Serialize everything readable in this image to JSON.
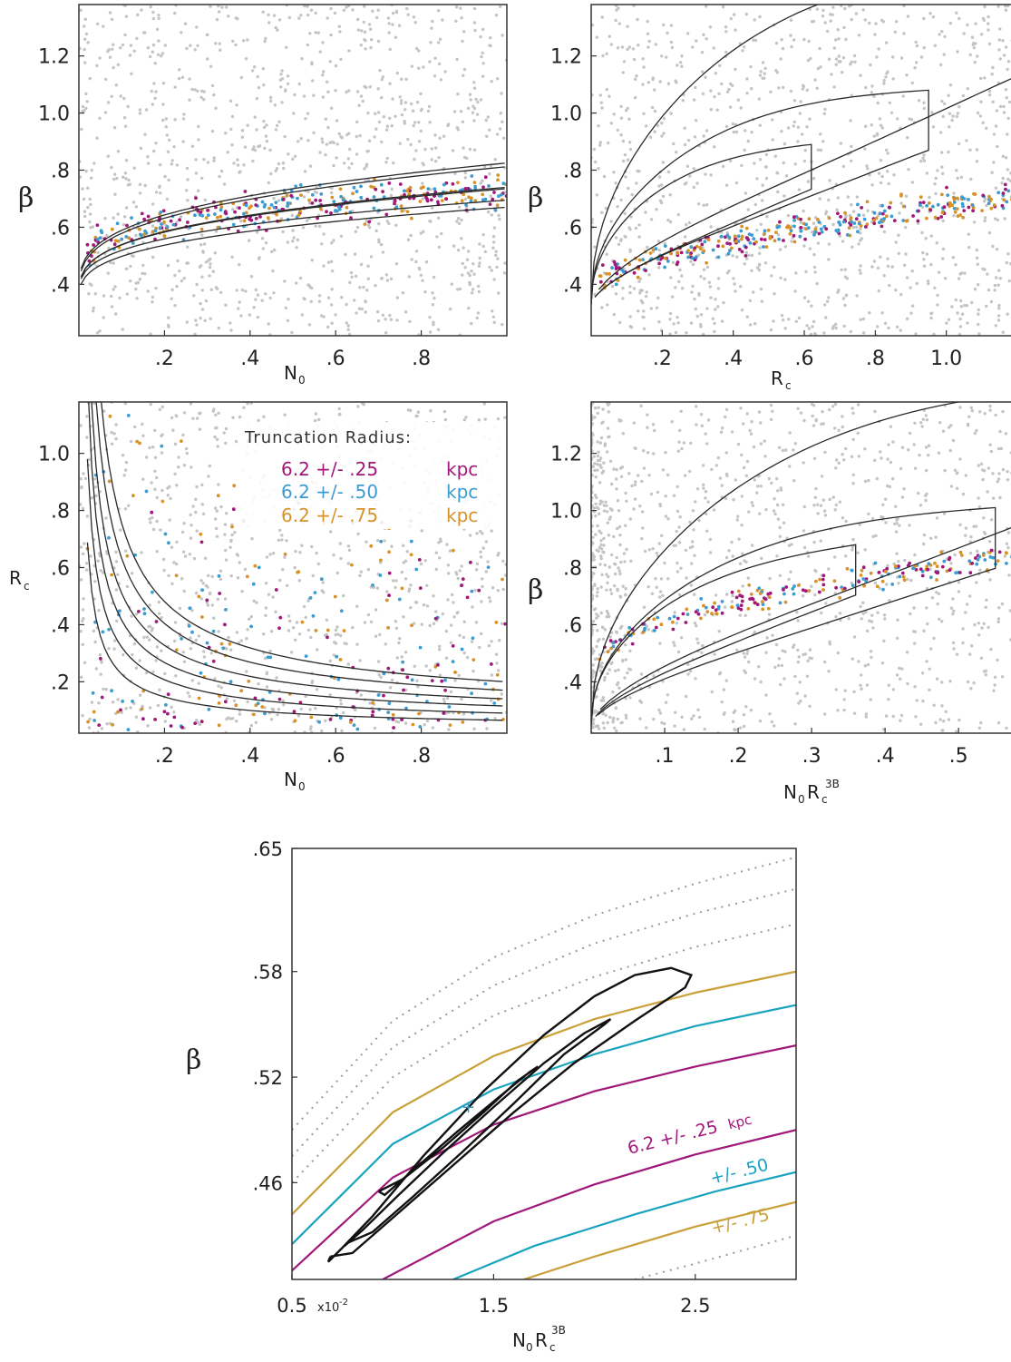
{
  "colors": {
    "magenta": "#a0187a",
    "blue": "#3c9bd0",
    "orange": "#d8922a",
    "gray": "#c4c4c4",
    "cyan": "#1aa3bf",
    "gold": "#c9a03a"
  },
  "chart_data": [
    {
      "type": "scatter",
      "panel": "top-left",
      "xlabel": "N",
      "xlabel_sub": "0",
      "ylabel": "β",
      "xlim": [
        0.0,
        1.0
      ],
      "ylim": [
        0.22,
        1.38
      ],
      "xticks": [
        0.2,
        0.4,
        0.6,
        0.8
      ],
      "xtick_labels": [
        ".2",
        ".4",
        ".6",
        ".8"
      ],
      "yticks": [
        0.4,
        0.6,
        0.8,
        1.0,
        1.2
      ],
      "ytick_labels": [
        ".4",
        ".6",
        ".8",
        "1.0",
        "1.2"
      ],
      "contours": "three nested contour bands rising from (0.02, 0.40) to about (1.0, 0.72–0.92)"
    },
    {
      "type": "scatter",
      "panel": "top-right",
      "xlabel": "R",
      "xlabel_sub": "c",
      "ylabel": "β",
      "xlim": [
        0.0,
        1.2
      ],
      "ylim": [
        0.22,
        1.38
      ],
      "xticks": [
        0.2,
        0.4,
        0.6,
        0.8,
        1.0
      ],
      "xtick_labels": [
        ".2",
        ".4",
        ".6",
        ".8",
        "1.0"
      ],
      "yticks": [
        0.4,
        0.6,
        0.8,
        1.0,
        1.2
      ],
      "ytick_labels": [
        ".4",
        ".6",
        ".8",
        "1.0",
        "1.2"
      ],
      "contours": "three nested elongated contours with tips near β = 0.88, 1.08 and above 1.3"
    },
    {
      "type": "scatter",
      "panel": "middle-left",
      "xlabel": "N",
      "xlabel_sub": "0",
      "ylabel": "R",
      "ylabel_sub": "c",
      "xlim": [
        0.0,
        1.0
      ],
      "ylim": [
        0.02,
        1.18
      ],
      "xticks": [
        0.2,
        0.4,
        0.6,
        0.8
      ],
      "xtick_labels": [
        ".2",
        ".4",
        ".6",
        ".8"
      ],
      "yticks": [
        0.2,
        0.4,
        0.6,
        0.8,
        1.0
      ],
      "ytick_labels": [
        ".2",
        ".4",
        ".6",
        ".8",
        "1.0"
      ],
      "legend": {
        "title": "Truncation Radius:",
        "entries": [
          {
            "name": "6.2 +/- .25",
            "unit": "kpc",
            "color": "magenta"
          },
          {
            "name": "6.2 +/- .50",
            "unit": "kpc",
            "color": "blue"
          },
          {
            "name": "6.2 +/- .75",
            "unit": "kpc",
            "color": "orange"
          }
        ],
        "position": "top-right"
      }
    },
    {
      "type": "scatter",
      "panel": "middle-right",
      "xlabel": "N",
      "xlabel_sub": "0",
      "xlabel_mid": "R",
      "xlabel_mid_sub": "c",
      "xlabel_sup": "3B",
      "ylabel": "β",
      "xlim": [
        0.0,
        0.58
      ],
      "ylim": [
        0.22,
        1.38
      ],
      "xticks": [
        0.1,
        0.2,
        0.3,
        0.4,
        0.5
      ],
      "xtick_labels": [
        ".1",
        ".2",
        ".3",
        ".4",
        ".5"
      ],
      "yticks": [
        0.4,
        0.6,
        0.8,
        1.0,
        1.2
      ],
      "ytick_labels": [
        ".4",
        ".6",
        ".8",
        "1.0",
        "1.2"
      ]
    },
    {
      "type": "line",
      "panel": "bottom",
      "xlabel": "N",
      "xlabel_sub": "0",
      "xlabel_mid": "R",
      "xlabel_mid_sub": "c",
      "xlabel_sup": "3B",
      "ylabel": "β",
      "xlim": [
        0.5,
        3.0
      ],
      "ylim": [
        0.405,
        0.65
      ],
      "xticks": [
        0.5,
        1.5,
        2.5
      ],
      "xtick_labels": [
        "0.5",
        "1.5",
        "2.5"
      ],
      "x_multiplier": "x10",
      "x_multiplier_exp": "-2",
      "yticks": [
        0.46,
        0.52,
        0.58,
        0.65
      ],
      "ytick_labels": [
        ".46",
        ".52",
        ".58",
        ".65"
      ],
      "series": [
        {
          "name": "6.2 +/- .25",
          "unit": "kpc",
          "color": "magenta",
          "lines": [
            {
              "x": [
                0.5,
                1.0,
                1.5,
                2.0,
                2.5,
                3.0
              ],
              "y": [
                0.41,
                0.463,
                0.493,
                0.512,
                0.526,
                0.538
              ]
            },
            {
              "x": [
                0.95,
                1.5,
                2.0,
                2.5,
                3.0
              ],
              "y": [
                0.405,
                0.438,
                0.459,
                0.476,
                0.49
              ]
            }
          ]
        },
        {
          "name": "+/- .50",
          "color": "cyan",
          "lines": [
            {
              "x": [
                0.5,
                1.0,
                1.5,
                2.0,
                2.5,
                3.0
              ],
              "y": [
                0.425,
                0.482,
                0.513,
                0.533,
                0.549,
                0.561
              ]
            },
            {
              "x": [
                1.3,
                1.7,
                2.2,
                2.6,
                3.0
              ],
              "y": [
                0.405,
                0.424,
                0.442,
                0.455,
                0.466
              ]
            }
          ]
        },
        {
          "name": "+/- .75",
          "color": "gold",
          "lines": [
            {
              "x": [
                0.5,
                1.0,
                1.5,
                2.0,
                2.5,
                3.0
              ],
              "y": [
                0.442,
                0.5,
                0.532,
                0.553,
                0.568,
                0.58
              ]
            },
            {
              "x": [
                1.65,
                2.0,
                2.5,
                3.0
              ],
              "y": [
                0.405,
                0.418,
                0.435,
                0.449
              ]
            }
          ]
        },
        {
          "name": "",
          "color": "gray",
          "style": "dotted",
          "lines": [
            {
              "x": [
                0.5,
                1.0,
                1.5,
                2.0,
                2.5,
                3.0
              ],
              "y": [
                0.46,
                0.52,
                0.555,
                0.577,
                0.594,
                0.607
              ]
            },
            {
              "x": [
                0.5,
                1.0,
                1.5,
                2.0,
                2.5,
                3.0
              ],
              "y": [
                0.475,
                0.537,
                0.572,
                0.596,
                0.613,
                0.627
              ]
            },
            {
              "x": [
                0.5,
                1.0,
                1.5,
                2.0,
                2.5,
                3.0
              ],
              "y": [
                0.49,
                0.552,
                0.588,
                0.612,
                0.63,
                0.645
              ]
            },
            {
              "x": [
                2.2,
                2.5,
                3.0
              ],
              "y": [
                0.405,
                0.414,
                0.43
              ]
            }
          ]
        }
      ],
      "contours": [
        {
          "level": "inner",
          "x": [
            0.93,
            1.05,
            1.25,
            1.45,
            1.62,
            1.72,
            1.68,
            1.52,
            1.32,
            1.12,
            0.96
          ],
          "y": [
            0.455,
            0.462,
            0.48,
            0.5,
            0.518,
            0.526,
            0.523,
            0.508,
            0.489,
            0.469,
            0.453
          ]
        },
        {
          "level": "middle",
          "x": [
            0.78,
            0.9,
            1.1,
            1.35,
            1.6,
            1.85,
            2.05,
            2.08,
            1.95,
            1.75,
            1.5,
            1.25,
            1.02,
            0.85,
            0.76
          ],
          "y": [
            0.426,
            0.432,
            0.452,
            0.478,
            0.505,
            0.533,
            0.55,
            0.553,
            0.545,
            0.528,
            0.503,
            0.477,
            0.452,
            0.433,
            0.424
          ]
        },
        {
          "level": "outer",
          "x": [
            0.69,
            0.8,
            1.0,
            1.3,
            1.6,
            1.9,
            2.2,
            2.45,
            2.48,
            2.38,
            2.2,
            2.0,
            1.75,
            1.45,
            1.15,
            0.9,
            0.75,
            0.68
          ],
          "y": [
            0.418,
            0.42,
            0.44,
            0.47,
            0.5,
            0.528,
            0.552,
            0.571,
            0.578,
            0.582,
            0.578,
            0.566,
            0.544,
            0.512,
            0.475,
            0.441,
            0.423,
            0.415
          ]
        }
      ],
      "annotations": [
        {
          "text": "6.2 +/- .25",
          "unit": "kpc",
          "color": "magenta"
        },
        {
          "text": "+/- .50",
          "color": "cyan"
        },
        {
          "text": "+/- .75",
          "color": "gold"
        }
      ]
    }
  ]
}
